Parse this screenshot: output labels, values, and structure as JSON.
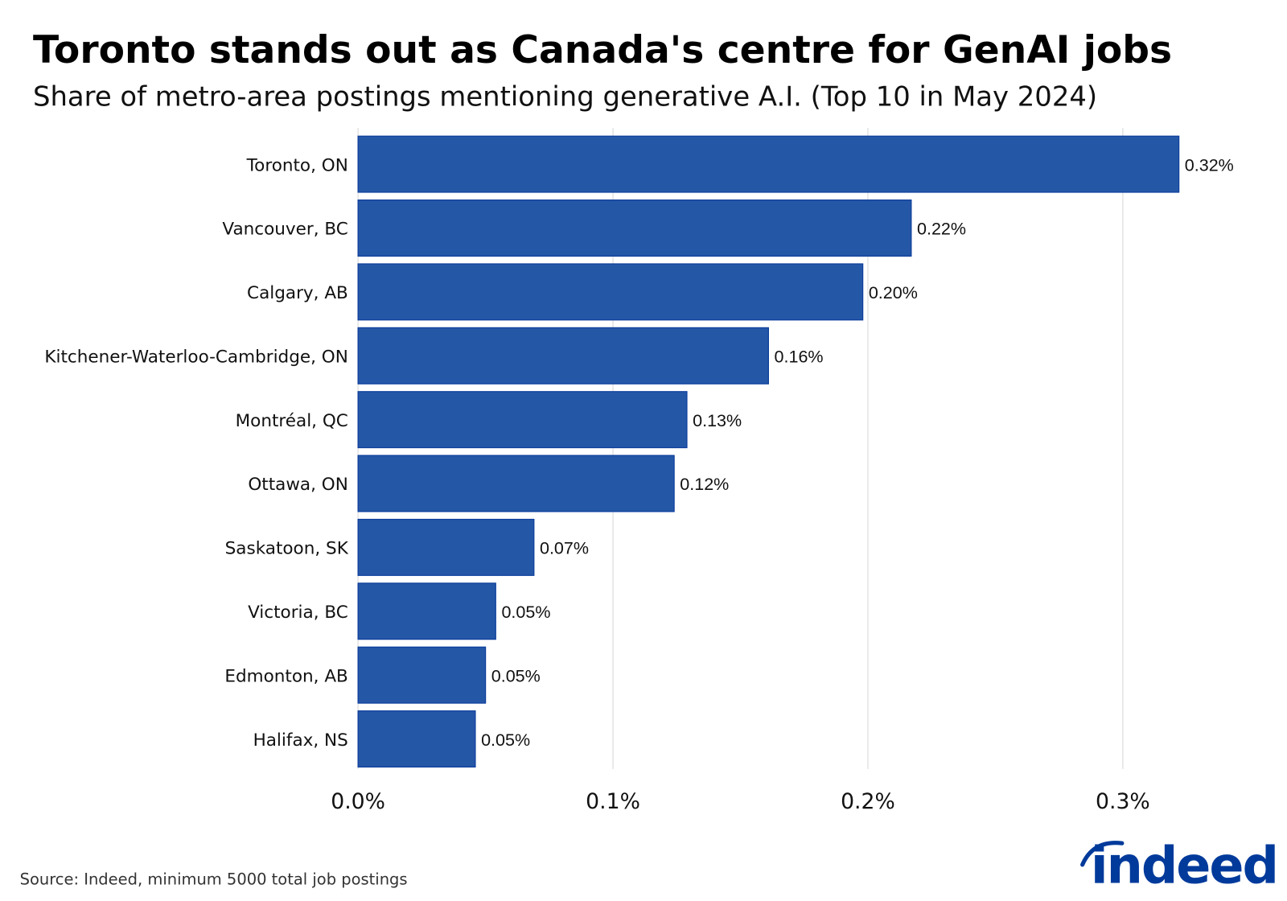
{
  "chart_data": {
    "type": "bar",
    "orientation": "horizontal",
    "title": "Toronto stands out as Canada's centre for GenAI jobs",
    "subtitle": "Share of metro-area postings mentioning generative A.I. (Top 10 in May 2024)",
    "categories": [
      "Toronto, ON",
      "Vancouver, BC",
      "Calgary, AB",
      "Kitchener-Waterloo-Cambridge, ON",
      "Montréal, QC",
      "Ottawa, ON",
      "Saskatoon, SK",
      "Victoria, BC",
      "Edmonton, AB",
      "Halifax, NS"
    ],
    "values": [
      0.322,
      0.217,
      0.198,
      0.161,
      0.129,
      0.124,
      0.069,
      0.054,
      0.05,
      0.046
    ],
    "data_labels": [
      "0.32%",
      "0.22%",
      "0.20%",
      "0.16%",
      "0.13%",
      "0.12%",
      "0.07%",
      "0.05%",
      "0.05%",
      "0.05%"
    ],
    "xlim": [
      0,
      0.35
    ],
    "x_ticks": [
      0,
      0.1,
      0.2,
      0.3
    ],
    "x_tick_labels": [
      "0.0%",
      "0.1%",
      "0.2%",
      "0.3%"
    ],
    "grid": "vertical",
    "bar_color": "#2557a7",
    "bar_edge_color": "#0d3f9c",
    "source": "Source: Indeed, minimum 5000 total job postings",
    "logo": "indeed",
    "logo_color": "#003a9b"
  }
}
